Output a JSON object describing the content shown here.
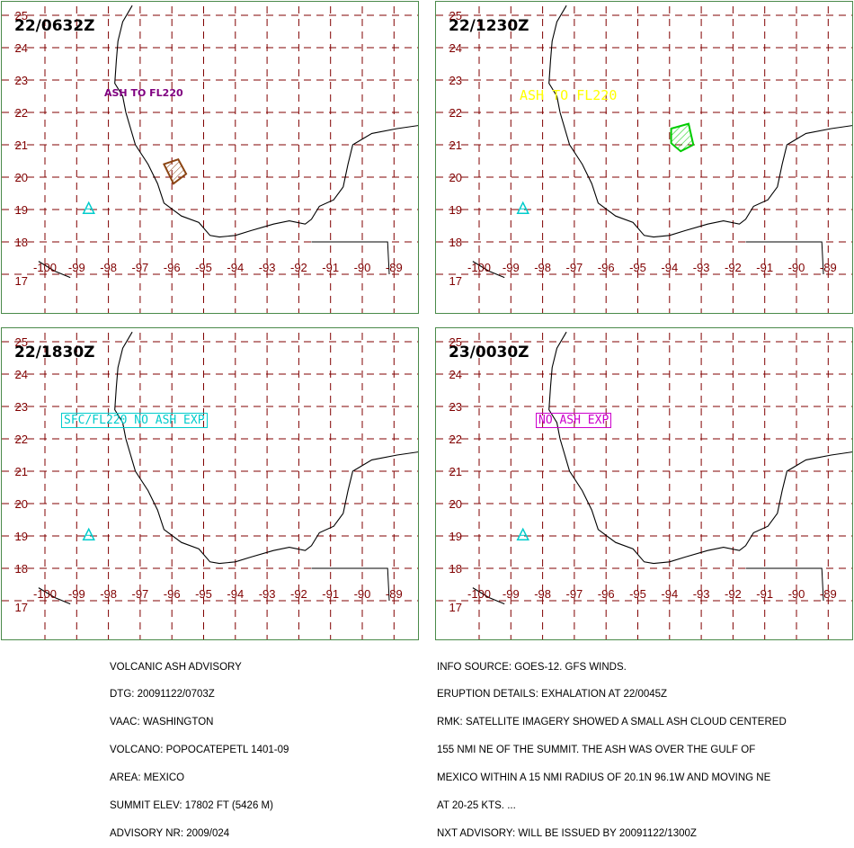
{
  "panels": [
    {
      "time": "22/0632Z",
      "annotation": {
        "text": "ASH TO FL220",
        "color": "#800080",
        "boxed": false,
        "bold": true
      },
      "ash_polygon": {
        "color": "#8B4513",
        "points": [
          [
            -96.25,
            20.4
          ],
          [
            -95.8,
            20.55
          ],
          [
            -95.55,
            20.1
          ],
          [
            -95.95,
            19.8
          ]
        ]
      }
    },
    {
      "time": "22/1230Z",
      "annotation": {
        "text": "ASH TO FL220",
        "color": "#ffff00",
        "boxed": false,
        "bold": false
      },
      "ash_polygon": {
        "color": "#00cc00",
        "points": [
          [
            -93.95,
            21.5
          ],
          [
            -93.4,
            21.65
          ],
          [
            -93.25,
            21.0
          ],
          [
            -93.65,
            20.8
          ],
          [
            -93.95,
            21.05
          ]
        ]
      }
    },
    {
      "time": "22/1830Z",
      "annotation": {
        "text": "SFC/FL220 NO ASH EXP",
        "color": "#00cccc",
        "boxed": true,
        "bold": false
      },
      "ash_polygon": null
    },
    {
      "time": "23/0030Z",
      "annotation": {
        "text": "NO ASH EXP",
        "color": "#cc00cc",
        "boxed": true,
        "bold": false
      },
      "ash_polygon": null
    }
  ],
  "map": {
    "lon_labels": [
      "-100",
      "-99",
      "-98",
      "-97",
      "-96",
      "-95",
      "-94",
      "-93",
      "-92",
      "-91",
      "-90",
      "-89"
    ],
    "lat_labels": [
      "17",
      "18",
      "19",
      "20",
      "21",
      "22",
      "23",
      "24",
      "25"
    ],
    "volcano": {
      "lon": -98.62,
      "lat": 19.02,
      "color": "#00cccc",
      "symbol": "triangle-icon"
    },
    "grid_color": "#800000"
  },
  "footer_left": [
    "VOLCANIC ASH ADVISORY",
    "DTG: 20091122/0703Z",
    "VAAC: WASHINGTON",
    "VOLCANO: POPOCATEPETL 1401-09",
    "AREA: MEXICO",
    "SUMMIT ELEV: 17802 FT (5426 M)",
    "ADVISORY NR: 2009/024"
  ],
  "footer_right": [
    "INFO SOURCE: GOES-12. GFS WINDS.",
    "ERUPTION DETAILS: EXHALATION AT 22/0045Z",
    "RMK: SATELLITE IMAGERY SHOWED A SMALL ASH CLOUD CENTERED",
    "155 NMI NE OF THE SUMMIT. THE ASH WAS OVER THE GULF OF",
    "MEXICO WITHIN A 15 NMI RADIUS OF 20.1N 96.1W AND MOVING NE",
    "AT 20-25 KTS. ...",
    "NXT ADVISORY: WILL BE ISSUED BY 20091122/1300Z"
  ]
}
